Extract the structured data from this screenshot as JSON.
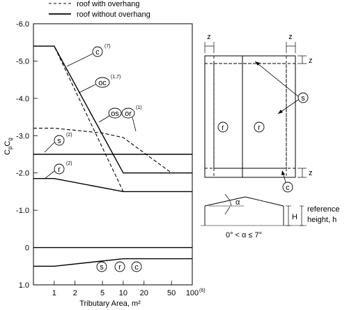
{
  "legend": {
    "with_overhang": "roof with overhang",
    "without_overhang": "roof without overhang"
  },
  "chart_data": {
    "type": "line",
    "xlabel": "Tributary Area, m²",
    "ylabel": "CpCg",
    "x_scale": "log",
    "y_inverted": true,
    "xlim": [
      0.5,
      100
    ],
    "ylim": [
      1.0,
      -6.0
    ],
    "xticks": [
      "1",
      "2",
      "5",
      "10",
      "20",
      "50",
      "100"
    ],
    "xtick_last_sup": "(6)",
    "yticks": [
      "-6.0",
      "-5.0",
      "-4.0",
      "-3.0",
      "-2.0",
      "-1.0",
      "0",
      "1.0"
    ],
    "series": [
      {
        "name": "roof without overhang",
        "zone": "c",
        "style": "solid",
        "x": [
          0.5,
          1,
          10,
          100
        ],
        "y": [
          -5.4,
          -5.4,
          -2.0,
          -2.0
        ]
      },
      {
        "name": "roof with overhang",
        "zone": "oc",
        "style": "dashed",
        "x": [
          0.5,
          1,
          10
        ],
        "y": [
          -5.4,
          -5.4,
          -1.5
        ]
      },
      {
        "name": "roof with overhang",
        "zone": "os/or",
        "style": "dashed",
        "x": [
          0.5,
          1,
          5,
          10,
          50
        ],
        "y": [
          -3.2,
          -3.2,
          -3.07,
          -2.95,
          -2.0
        ]
      },
      {
        "name": "roof without overhang",
        "zone": "s",
        "style": "solid",
        "x": [
          0.5,
          100
        ],
        "y": [
          -2.5,
          -2.5
        ]
      },
      {
        "name": "roof without overhang",
        "zone": "r",
        "style": "solid",
        "x": [
          0.5,
          1,
          10,
          100
        ],
        "y": [
          -1.85,
          -1.85,
          -1.5,
          -1.5
        ]
      },
      {
        "name": "roof without overhang",
        "zone": "s, r, c (positive)",
        "style": "solid",
        "x": [
          0.5,
          1,
          10,
          100
        ],
        "y": [
          0.5,
          0.5,
          0.3,
          0.3
        ]
      },
      {
        "name": "zero line",
        "zone": "",
        "style": "solid",
        "x": [
          0.5,
          100
        ],
        "y": [
          0,
          0
        ]
      }
    ],
    "annotations": [
      {
        "label": "c",
        "sup": "(7)"
      },
      {
        "label": "oc",
        "sup": "(1,7)"
      },
      {
        "label": "os",
        "label2": "or",
        "sup": "(1)"
      },
      {
        "label": "s",
        "sup": "(2)"
      },
      {
        "label": "r",
        "sup": "(2)"
      },
      {
        "label": "s",
        "label2": "r",
        "label3": "c",
        "sup": ""
      }
    ]
  },
  "plan_diagram": {
    "z_top_left": "z",
    "z_top_right": "z",
    "z_right_top": "z",
    "z_right_bottom": "z",
    "zone_r1": "r",
    "zone_r2": "r",
    "zone_s": "s",
    "zone_c": "c"
  },
  "elevation_diagram": {
    "alpha": "α",
    "height": "H",
    "reference_label_1": "reference",
    "reference_label_2": "height, h",
    "angle_condition": "0° < α ≤ 7°"
  }
}
